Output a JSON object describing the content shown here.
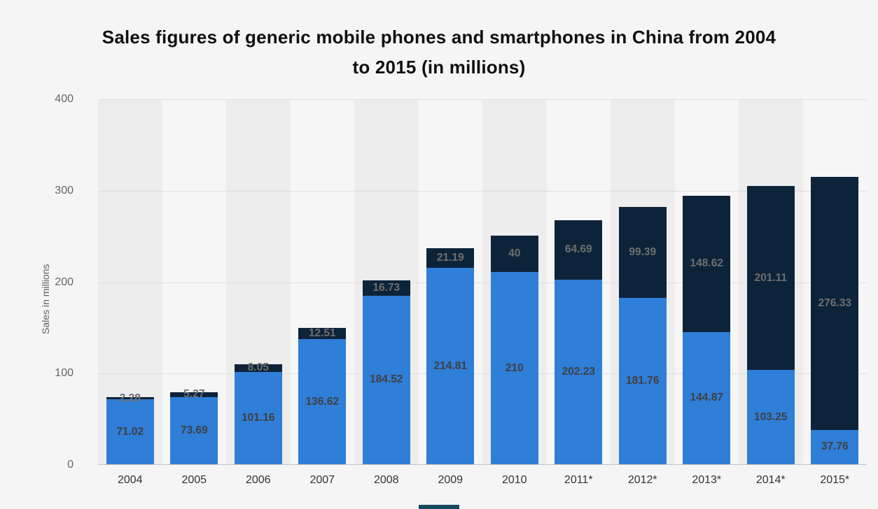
{
  "title": {
    "line1": "Sales figures of generic mobile phones and smartphones in China from 2004",
    "line2": "to 2015 (in millions)"
  },
  "chart_data": {
    "type": "bar",
    "stacked": true,
    "title": "Sales figures of generic mobile phones and smartphones in China from 2004 to 2015 (in millions)",
    "ylabel": "Sales in millions",
    "xlabel": "",
    "ylim": [
      0,
      400
    ],
    "yticks": [
      0,
      100,
      200,
      300,
      400
    ],
    "grid": true,
    "legend": "none",
    "background": "#f5f5f5",
    "band_colors": [
      "#ededed",
      "#f6f6f6"
    ],
    "categories": [
      "2004",
      "2005",
      "2006",
      "2007",
      "2008",
      "2009",
      "2010",
      "2011*",
      "2012*",
      "2013*",
      "2014*",
      "2015*"
    ],
    "series": [
      {
        "name": "Generic mobile phones",
        "color": "#2f7ed8",
        "label_color": "#404040",
        "values": [
          71.02,
          73.69,
          101.16,
          136.62,
          184.52,
          214.81,
          210,
          202.23,
          181.76,
          144.87,
          103.25,
          37.76
        ],
        "labels": [
          "71.02",
          "73.69",
          "101.16",
          "136.62",
          "184.52",
          "214.81",
          "210",
          "202.23",
          "181.76",
          "144.87",
          "103.25",
          "37.76"
        ]
      },
      {
        "name": "Smartphones",
        "color": "#0d233a",
        "label_color": "#6e6e6e",
        "values": [
          2.28,
          5.27,
          8.05,
          12.51,
          16.73,
          21.19,
          40,
          64.69,
          99.39,
          148.62,
          201.11,
          276.33
        ],
        "labels": [
          "2.28",
          "5.27",
          "8.05",
          "12.51",
          "16.73",
          "21.19",
          "40",
          "64.69",
          "99.39",
          "148.62",
          "201.11",
          "276.33"
        ]
      }
    ]
  }
}
